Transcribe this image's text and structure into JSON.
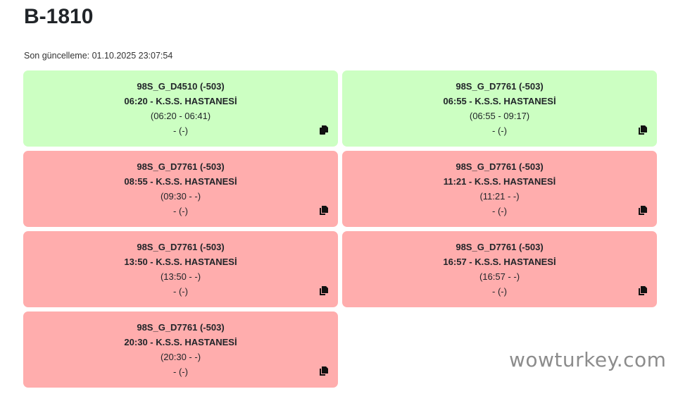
{
  "page": {
    "title": "B-1810",
    "last_updated": "Son güncelleme: 01.10.2025 23:07:54"
  },
  "colors": {
    "on_time": "#ccffc2",
    "late": "#ffadad"
  },
  "cards": [
    {
      "status": "green",
      "route": "98S_G_D4510 (-503)",
      "departure": "06:20 - K.S.S. HASTANESİ",
      "window": "(06:20 - 06:41)",
      "extra": "- (-)",
      "icon": "copy-icon"
    },
    {
      "status": "green",
      "route": "98S_G_D7761 (-503)",
      "departure": "06:55 - K.S.S. HASTANESİ",
      "window": "(06:55 - 09:17)",
      "extra": "- (-)",
      "icon": "copy-icon"
    },
    {
      "status": "red",
      "route": "98S_G_D7761 (-503)",
      "departure": "08:55 - K.S.S. HASTANESİ",
      "window": "(09:30 - -)",
      "extra": "- (-)",
      "icon": "copy-icon"
    },
    {
      "status": "red",
      "route": "98S_G_D7761 (-503)",
      "departure": "11:21 - K.S.S. HASTANESİ",
      "window": "(11:21 - -)",
      "extra": "- (-)",
      "icon": "copy-icon"
    },
    {
      "status": "red",
      "route": "98S_G_D7761 (-503)",
      "departure": "13:50 - K.S.S. HASTANESİ",
      "window": "(13:50 - -)",
      "extra": "- (-)",
      "icon": "copy-icon"
    },
    {
      "status": "red",
      "route": "98S_G_D7761 (-503)",
      "departure": "16:57 - K.S.S. HASTANESİ",
      "window": "(16:57 - -)",
      "extra": "- (-)",
      "icon": "copy-icon"
    },
    {
      "status": "red",
      "route": "98S_G_D7761 (-503)",
      "departure": "20:30 - K.S.S. HASTANESİ",
      "window": "(20:30 - -)",
      "extra": "- (-)",
      "icon": "copy-icon"
    }
  ],
  "watermark": "wowturkey.com"
}
